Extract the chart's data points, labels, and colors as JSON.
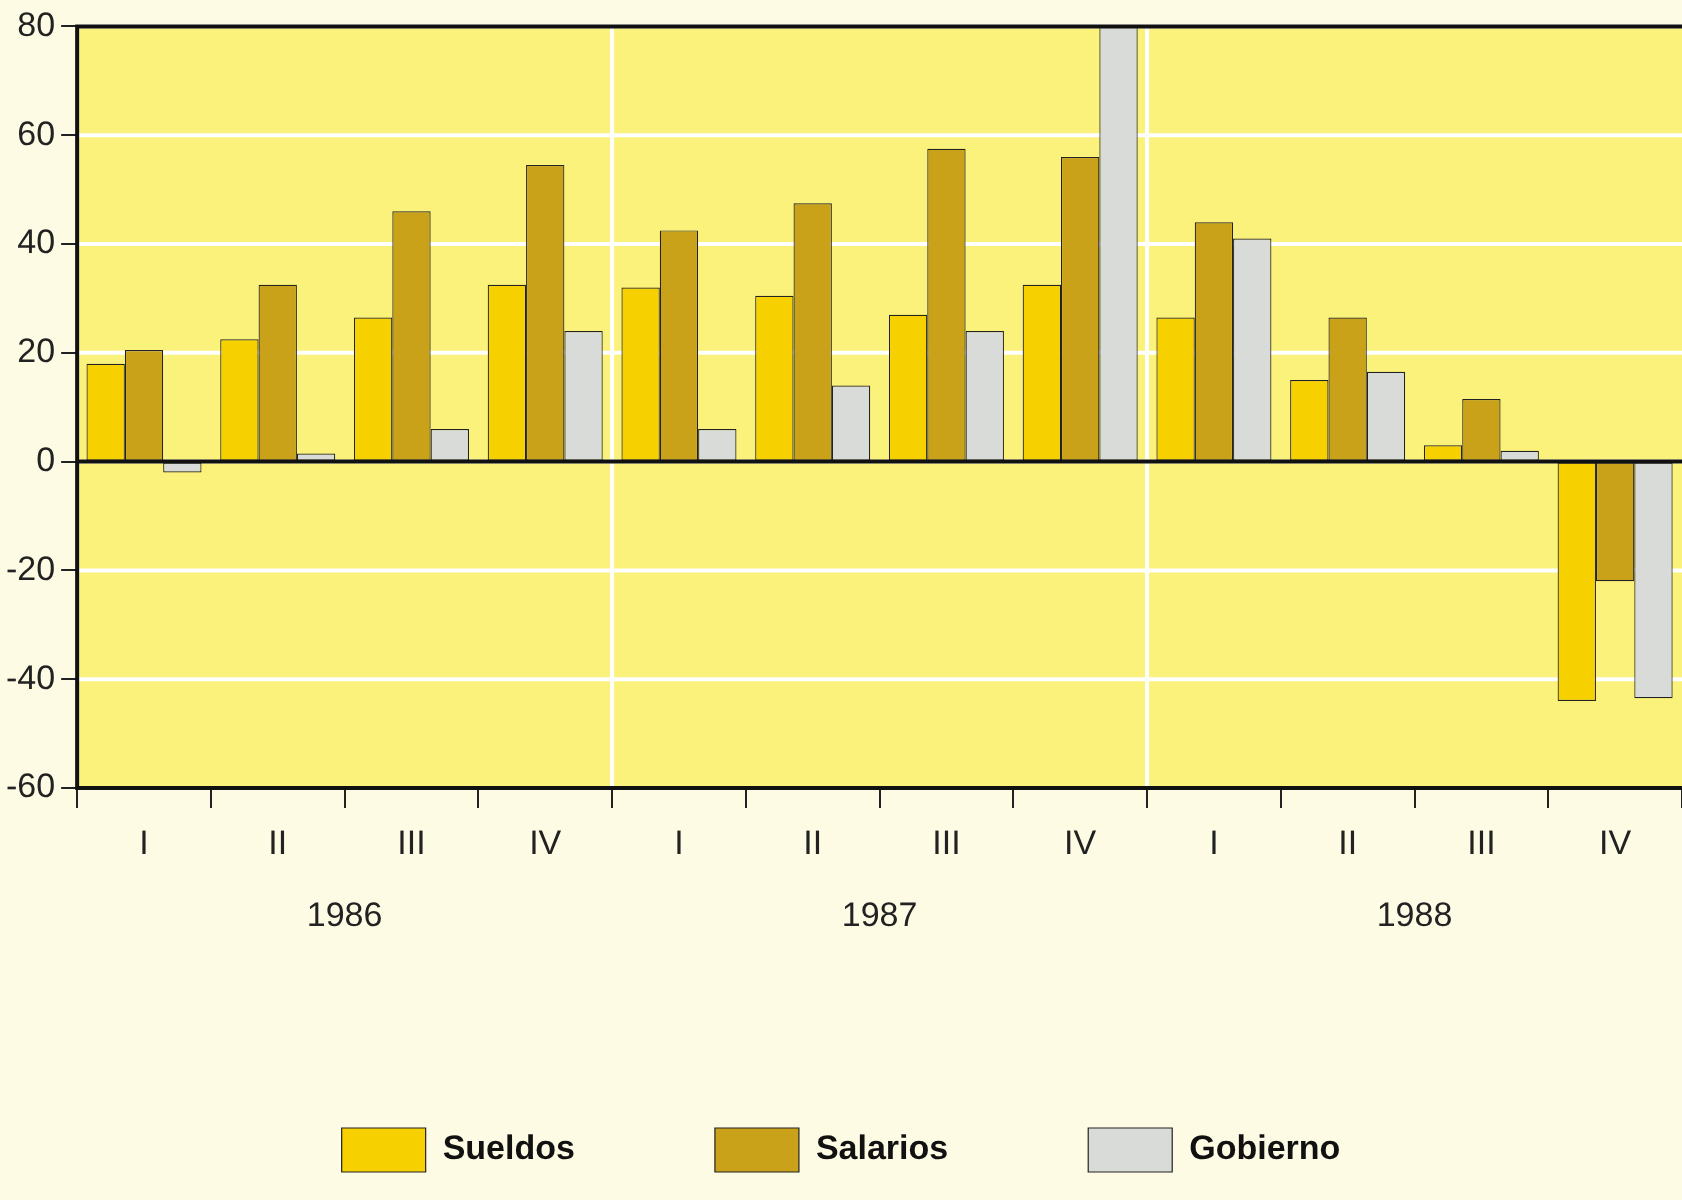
{
  "chart_data": {
    "type": "bar",
    "categories": [
      "I",
      "II",
      "III",
      "IV",
      "I",
      "II",
      "III",
      "IV",
      "I",
      "II",
      "III",
      "IV"
    ],
    "series": [
      {
        "name": "Sueldos",
        "color": "#f7d000",
        "values": [
          18,
          22.5,
          26.5,
          32.5,
          32,
          30.5,
          27,
          32.5,
          26.5,
          15,
          3,
          -44
        ]
      },
      {
        "name": "Salarios",
        "color": "#c9a21a",
        "values": [
          20.5,
          32.5,
          46,
          54.5,
          42.5,
          47.5,
          57.5,
          56,
          44,
          26.5,
          11.5,
          -22
        ]
      },
      {
        "name": "Gobierno",
        "color": "#d9dbd8",
        "values": [
          -2,
          1.5,
          6,
          24,
          6,
          14,
          24,
          80,
          41,
          16.5,
          2,
          -43.5
        ]
      }
    ],
    "annotations": [
      "1986",
      "1987",
      "1988"
    ],
    "ylim": [
      -60,
      80
    ],
    "yticks": [
      -60,
      -40,
      -20,
      0,
      20,
      40,
      60,
      80
    ],
    "grid": true,
    "legend": "bottom"
  }
}
